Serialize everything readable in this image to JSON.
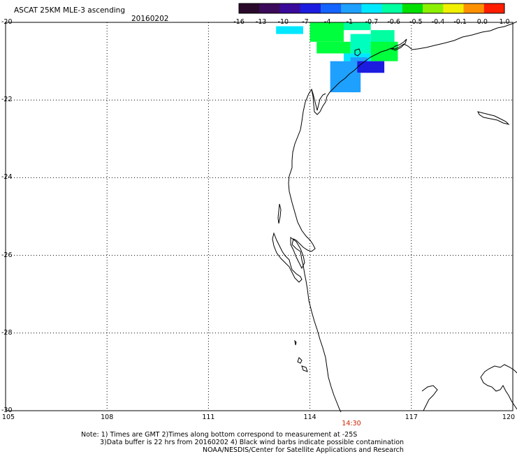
{
  "title": "ASCAT 25KM MLE-3 ascending",
  "date": "20160202",
  "colorbar": {
    "labels": [
      "-16",
      "-13",
      "-10",
      "-7",
      "-4",
      "-1",
      "-0.7",
      "-0.6",
      "-0.5",
      "-0.4",
      "-0.1",
      "0.0",
      "1.0"
    ],
    "colors": [
      "#2a0a2a",
      "#3c0a5a",
      "#3a0a9a",
      "#1c1ce0",
      "#1464ff",
      "#1ea0ff",
      "#00e8ff",
      "#00ffa0",
      "#00e000",
      "#8cf000",
      "#f0f000",
      "#ff9000",
      "#ff1e00"
    ]
  },
  "map": {
    "lon_range": [
      105,
      120
    ],
    "lat_range": [
      -30,
      -20
    ],
    "lon_labels": [
      "105",
      "108",
      "111",
      "114",
      "117",
      "120"
    ],
    "lat_labels": [
      "-20",
      "-22",
      "-24",
      "-26",
      "-28",
      "-30"
    ],
    "time_label": "14:30"
  },
  "notes": [
    "Note: 1) Times are GMT 2)Times along bottom correspond to measurement at -25S",
    "3)Data buffer is 22 hrs from 20160202 4) Black wind barbs indicate possible contamination",
    "NOAA/NESDIS/Center for Satellite Applications and Research"
  ],
  "swath_cells": [
    {
      "lon": 113.0,
      "lat": -20.1,
      "w": 0.8,
      "h": 0.2,
      "color": "#00e8ff"
    },
    {
      "lon": 114.0,
      "lat": -20.0,
      "w": 1.0,
      "h": 0.5,
      "color": "#00ff3c"
    },
    {
      "lon": 115.0,
      "lat": -20.0,
      "w": 0.8,
      "h": 0.2,
      "color": "#00ffa0"
    },
    {
      "lon": 115.8,
      "lat": -20.2,
      "w": 0.7,
      "h": 0.7,
      "color": "#00ffa0"
    },
    {
      "lon": 114.2,
      "lat": -20.5,
      "w": 1.0,
      "h": 0.3,
      "color": "#00ff3c"
    },
    {
      "lon": 115.2,
      "lat": -20.3,
      "w": 0.6,
      "h": 0.5,
      "color": "#00ffbe"
    },
    {
      "lon": 115.0,
      "lat": -20.8,
      "w": 0.8,
      "h": 0.2,
      "color": "#00e8ff"
    },
    {
      "lon": 115.8,
      "lat": -20.5,
      "w": 0.8,
      "h": 0.5,
      "color": "#00ff3c"
    },
    {
      "lon": 115.2,
      "lat": -20.9,
      "w": 0.5,
      "h": 0.2,
      "color": "#1ea0ff"
    },
    {
      "lon": 115.3,
      "lat": -21.0,
      "w": 0.9,
      "h": 0.3,
      "color": "#1c1ce0"
    },
    {
      "lon": 114.6,
      "lat": -21.0,
      "w": 0.8,
      "h": 0.8,
      "color": "#1ea0ff"
    },
    {
      "lon": 115.2,
      "lat": -21.3,
      "w": 0.3,
      "h": 0.5,
      "color": "#1ea0ff"
    }
  ]
}
